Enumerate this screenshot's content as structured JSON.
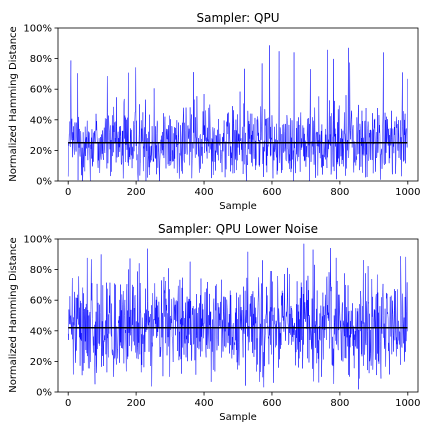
{
  "chart_data": [
    {
      "type": "line",
      "title": "Sampler: QPU",
      "xlabel": "Sample",
      "ylabel": "Normalized Hamming Distance",
      "xlim": [
        -30,
        1030
      ],
      "ylim": [
        0,
        1
      ],
      "xticks": [
        0,
        200,
        400,
        600,
        800,
        1000
      ],
      "yticks": [
        0,
        0.2,
        0.4,
        0.6,
        0.8,
        1.0
      ],
      "ytick_labels": [
        "0%",
        "20%",
        "40%",
        "60%",
        "80%",
        "100%"
      ],
      "grid": false,
      "series": [
        {
          "color": "#0000ff",
          "n_samples": 1000,
          "mean": 0.25,
          "spread": 0.12,
          "max": 0.94
        },
        {
          "color": "#000000",
          "constant": 0.25
        }
      ]
    },
    {
      "type": "line",
      "title": "Sampler: QPU Lower Noise",
      "xlabel": "Sample",
      "ylabel": "Normalized Hamming Distance",
      "xlim": [
        -30,
        1030
      ],
      "ylim": [
        0,
        1
      ],
      "xticks": [
        0,
        200,
        400,
        600,
        800,
        1000
      ],
      "yticks": [
        0,
        0.2,
        0.4,
        0.6,
        0.8,
        1.0
      ],
      "ytick_labels": [
        "0%",
        "20%",
        "40%",
        "60%",
        "80%",
        "100%"
      ],
      "grid": false,
      "series": [
        {
          "color": "#0000ff",
          "n_samples": 1000,
          "mean": 0.42,
          "spread": 0.16,
          "max": 0.98
        },
        {
          "color": "#000000",
          "constant": 0.42
        }
      ]
    }
  ]
}
